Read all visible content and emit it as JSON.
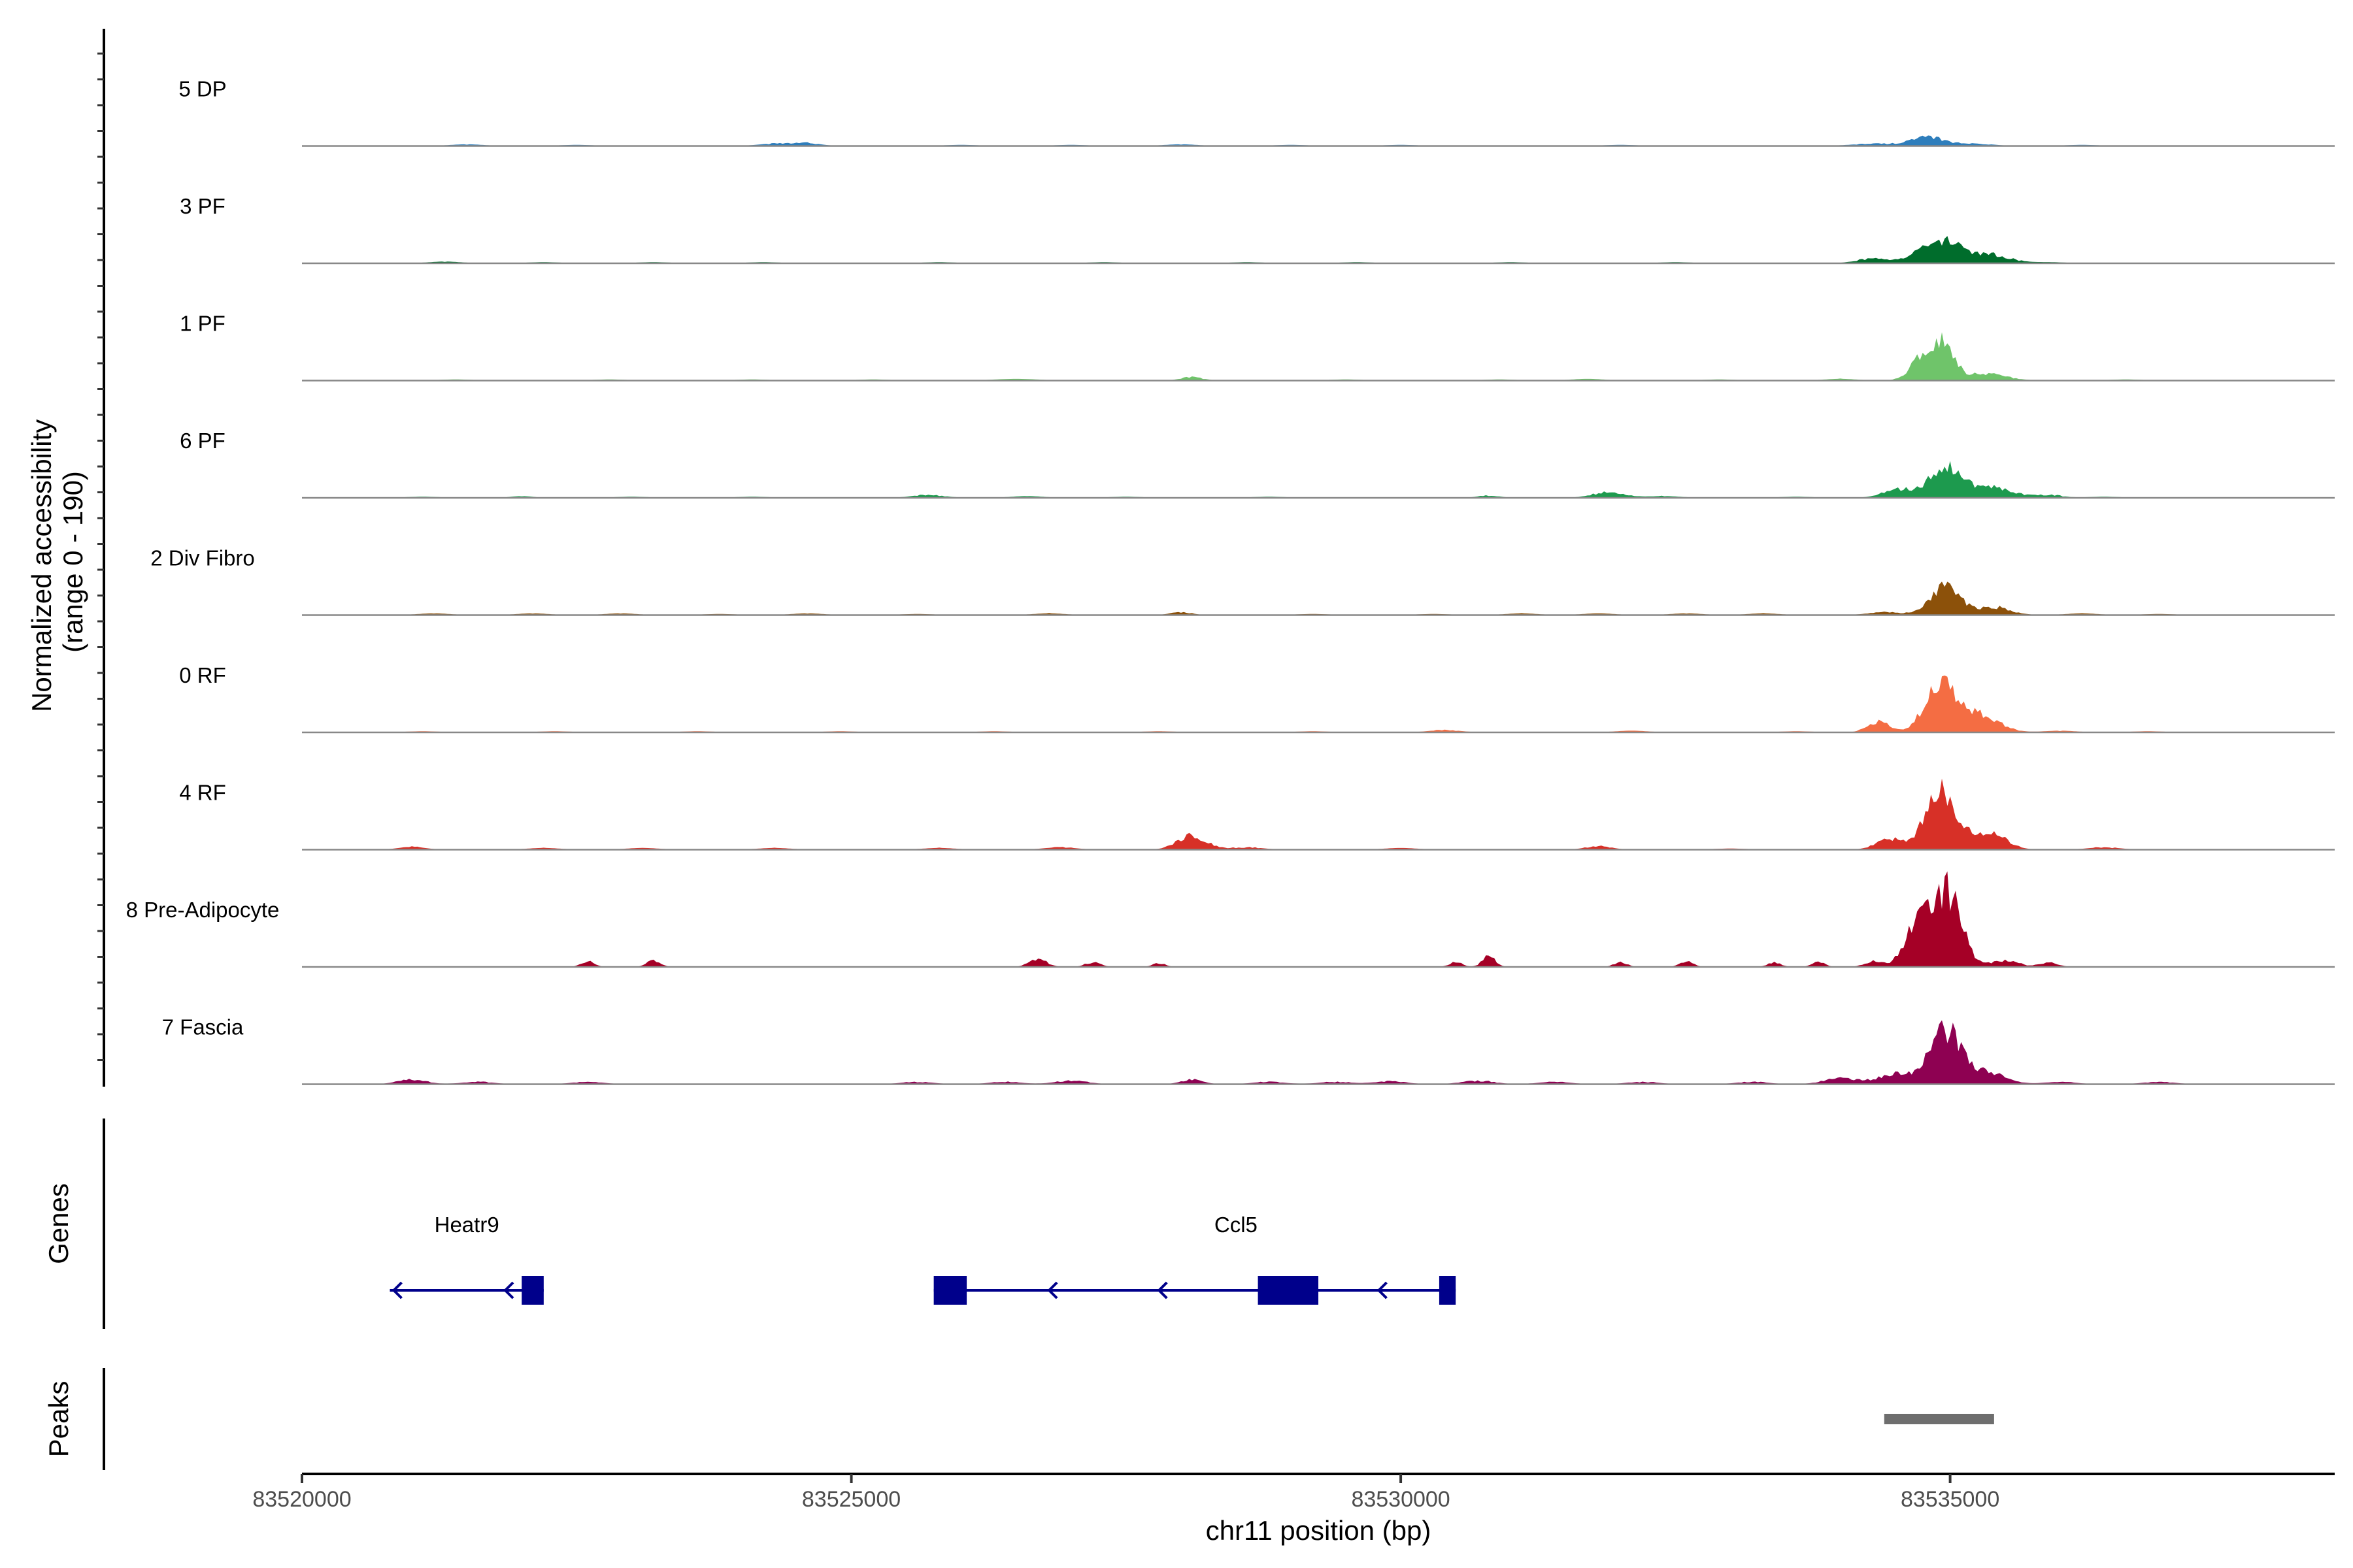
{
  "chart_data": {
    "type": "area",
    "chromosome": "chr11",
    "xlabel": "chr11 position (bp)",
    "xlim": [
      83520000,
      83538500
    ],
    "xticks": [
      83520000,
      83525000,
      83530000,
      83535000
    ],
    "ylabel_line1": "Normalized accessibility",
    "ylabel_line2": "(range 0 - 190)",
    "ylim": [
      0,
      190
    ],
    "grid": false,
    "legend": "none",
    "series": [
      {
        "name": "5 DP",
        "color": "#2e7ebc",
        "bumps": [
          [
            83521500,
            3,
            150
          ],
          [
            83522500,
            2,
            150
          ],
          [
            83524300,
            4,
            150
          ],
          [
            83524600,
            5,
            120
          ],
          [
            83526000,
            2,
            150
          ],
          [
            83527000,
            2,
            150
          ],
          [
            83528000,
            3,
            150
          ],
          [
            83529000,
            2,
            150
          ],
          [
            83530000,
            2,
            150
          ],
          [
            83532000,
            2,
            150
          ],
          [
            83534300,
            4,
            200
          ],
          [
            83534800,
            15,
            160
          ],
          [
            83535250,
            4,
            150
          ],
          [
            83536200,
            2,
            150
          ]
        ]
      },
      {
        "name": "3 PF",
        "color": "#006d2c",
        "bumps": [
          [
            83521300,
            3,
            150
          ],
          [
            83522200,
            2,
            150
          ],
          [
            83523200,
            2,
            150
          ],
          [
            83524200,
            2,
            150
          ],
          [
            83525800,
            2,
            150
          ],
          [
            83527300,
            2,
            150
          ],
          [
            83528600,
            2,
            150
          ],
          [
            83529600,
            2,
            150
          ],
          [
            83531000,
            2,
            150
          ],
          [
            83532500,
            2,
            150
          ],
          [
            83534300,
            8,
            150
          ],
          [
            83534750,
            25,
            120
          ],
          [
            83535000,
            38,
            110
          ],
          [
            83535350,
            16,
            180
          ],
          [
            83535900,
            2,
            150
          ]
        ]
      },
      {
        "name": "1 PF",
        "color": "#6fc46a",
        "bumps": [
          [
            83521400,
            2,
            150
          ],
          [
            83522800,
            2,
            150
          ],
          [
            83524100,
            2,
            150
          ],
          [
            83525200,
            2,
            150
          ],
          [
            83526500,
            3,
            200
          ],
          [
            83528100,
            6,
            100
          ],
          [
            83529500,
            2,
            150
          ],
          [
            83530900,
            2,
            150
          ],
          [
            83531700,
            3,
            150
          ],
          [
            83532900,
            2,
            150
          ],
          [
            83534000,
            3,
            150
          ],
          [
            83534750,
            40,
            110
          ],
          [
            83534950,
            60,
            90
          ],
          [
            83535300,
            12,
            200
          ],
          [
            83536600,
            2,
            150
          ]
        ]
      },
      {
        "name": "6 PF",
        "color": "#1d9a4e",
        "bumps": [
          [
            83521100,
            2,
            150
          ],
          [
            83522000,
            3,
            100
          ],
          [
            83523000,
            2,
            150
          ],
          [
            83524100,
            2,
            150
          ],
          [
            83525700,
            5,
            150
          ],
          [
            83526600,
            3,
            150
          ],
          [
            83527500,
            2,
            150
          ],
          [
            83528800,
            2,
            150
          ],
          [
            83530800,
            4,
            100
          ],
          [
            83531900,
            10,
            150
          ],
          [
            83532400,
            3,
            150
          ],
          [
            83533600,
            2,
            150
          ],
          [
            83534550,
            15,
            150
          ],
          [
            83534950,
            55,
            130
          ],
          [
            83535350,
            20,
            200
          ],
          [
            83535900,
            5,
            120
          ],
          [
            83536400,
            2,
            150
          ]
        ]
      },
      {
        "name": "2 Div Fibro",
        "color": "#8c510a",
        "bumps": [
          [
            83521200,
            3,
            150
          ],
          [
            83522100,
            3,
            150
          ],
          [
            83522900,
            3,
            150
          ],
          [
            83523800,
            2,
            150
          ],
          [
            83524600,
            3,
            150
          ],
          [
            83525600,
            2,
            150
          ],
          [
            83526800,
            3,
            150
          ],
          [
            83528000,
            5,
            100
          ],
          [
            83529200,
            2,
            150
          ],
          [
            83530300,
            2,
            150
          ],
          [
            83531100,
            3,
            150
          ],
          [
            83531800,
            3,
            150
          ],
          [
            83532600,
            3,
            150
          ],
          [
            83533300,
            3,
            150
          ],
          [
            83534400,
            5,
            150
          ],
          [
            83534950,
            48,
            140
          ],
          [
            83535400,
            14,
            150
          ],
          [
            83536200,
            3,
            150
          ],
          [
            83536900,
            2,
            150
          ]
        ]
      },
      {
        "name": "0 RF",
        "color": "#f46d43",
        "bumps": [
          [
            83521100,
            2,
            150
          ],
          [
            83522300,
            2,
            150
          ],
          [
            83523600,
            2,
            150
          ],
          [
            83524900,
            2,
            150
          ],
          [
            83526300,
            2,
            150
          ],
          [
            83527800,
            2,
            150
          ],
          [
            83529200,
            2,
            150
          ],
          [
            83530400,
            4,
            150
          ],
          [
            83532100,
            3,
            150
          ],
          [
            83533600,
            2,
            150
          ],
          [
            83534350,
            18,
            100
          ],
          [
            83534900,
            85,
            130
          ],
          [
            83535250,
            32,
            180
          ],
          [
            83536000,
            3,
            150
          ],
          [
            83536800,
            2,
            150
          ]
        ]
      },
      {
        "name": "4 RF",
        "color": "#d73027",
        "bumps": [
          [
            83521000,
            5,
            120
          ],
          [
            83522200,
            3,
            150
          ],
          [
            83523100,
            3,
            150
          ],
          [
            83524300,
            3,
            150
          ],
          [
            83525800,
            3,
            150
          ],
          [
            83526900,
            4,
            150
          ],
          [
            83528100,
            25,
            130
          ],
          [
            83528600,
            4,
            150
          ],
          [
            83530000,
            3,
            150
          ],
          [
            83531800,
            6,
            120
          ],
          [
            83533000,
            2,
            150
          ],
          [
            83534450,
            20,
            120
          ],
          [
            83534920,
            105,
            140
          ],
          [
            83535350,
            30,
            150
          ],
          [
            83536400,
            4,
            150
          ]
        ]
      },
      {
        "name": "8 Pre-Adipocyte",
        "color": "#a50026",
        "bumps": [
          [
            83522600,
            10,
            60
          ],
          [
            83523200,
            12,
            60
          ],
          [
            83526700,
            14,
            80
          ],
          [
            83527200,
            8,
            70
          ],
          [
            83527800,
            6,
            60
          ],
          [
            83530500,
            8,
            60
          ],
          [
            83530800,
            18,
            60
          ],
          [
            83532000,
            8,
            60
          ],
          [
            83532600,
            10,
            60
          ],
          [
            83533400,
            8,
            60
          ],
          [
            83533800,
            8,
            60
          ],
          [
            83534300,
            10,
            80
          ],
          [
            83534750,
            100,
            130
          ],
          [
            83535000,
            115,
            120
          ],
          [
            83535500,
            12,
            120
          ],
          [
            83535900,
            8,
            80
          ]
        ]
      },
      {
        "name": "7 Fascia",
        "color": "#8e0152",
        "bumps": [
          [
            83521000,
            8,
            130
          ],
          [
            83521600,
            4,
            150
          ],
          [
            83522600,
            4,
            150
          ],
          [
            83525600,
            4,
            150
          ],
          [
            83526400,
            4,
            150
          ],
          [
            83527000,
            6,
            150
          ],
          [
            83528100,
            8,
            100
          ],
          [
            83528800,
            4,
            150
          ],
          [
            83529400,
            4,
            150
          ],
          [
            83529900,
            5,
            150
          ],
          [
            83530700,
            6,
            150
          ],
          [
            83531400,
            4,
            150
          ],
          [
            83532200,
            4,
            150
          ],
          [
            83533200,
            4,
            150
          ],
          [
            83534000,
            10,
            150
          ],
          [
            83534500,
            18,
            160
          ],
          [
            83534960,
            95,
            140
          ],
          [
            83535350,
            20,
            160
          ],
          [
            83536000,
            4,
            150
          ],
          [
            83536900,
            4,
            150
          ]
        ]
      }
    ],
    "genes": [
      {
        "name": "Heatr9",
        "strand": "-",
        "start": 83520800,
        "end": 83522200,
        "exons": [
          [
            83522000,
            83522200
          ]
        ],
        "label_x": 83521500
      },
      {
        "name": "Ccl5",
        "strand": "-",
        "start": 83525750,
        "end": 83530500,
        "exons": [
          [
            83525750,
            83526050
          ],
          [
            83528700,
            83529250
          ],
          [
            83530350,
            83530500
          ]
        ],
        "label_x": 83528500
      }
    ],
    "genes_label": "Genes",
    "peaks": [
      [
        83534400,
        83535400
      ]
    ],
    "peaks_label": "Peaks"
  }
}
